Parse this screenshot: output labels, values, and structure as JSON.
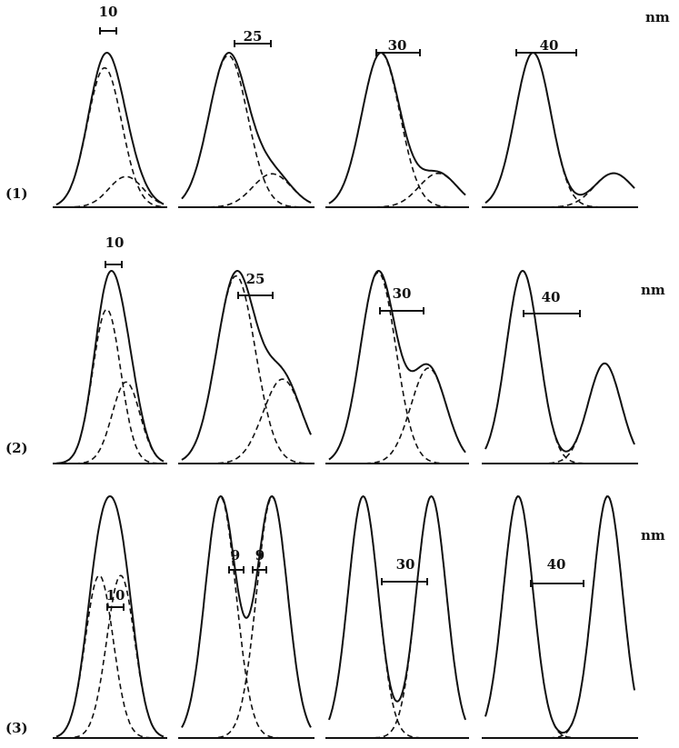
{
  "unit_label": "nm",
  "rows": [
    {
      "label": "(1)",
      "unit": "nm",
      "panels": [
        {
          "caption": "10",
          "peaks": [
            {
              "a": 1.0,
              "mu": 0.45,
              "s": 0.16
            },
            {
              "a": 0.22,
              "mu": 0.65,
              "s": 0.16
            }
          ]
        },
        {
          "caption": "25",
          "peaks": [
            {
              "a": 1.0,
              "mu": 0.36,
              "s": 0.15
            },
            {
              "a": 0.22,
              "mu": 0.7,
              "s": 0.15
            }
          ]
        },
        {
          "caption": "30",
          "peaks": [
            {
              "a": 1.0,
              "mu": 0.38,
              "s": 0.14
            },
            {
              "a": 0.22,
              "mu": 0.8,
              "s": 0.14
            }
          ]
        },
        {
          "caption": "40",
          "peaks": [
            {
              "a": 1.0,
              "mu": 0.32,
              "s": 0.12
            },
            {
              "a": 0.22,
              "mu": 0.86,
              "s": 0.13
            }
          ]
        }
      ]
    },
    {
      "label": "(2)",
      "unit": "nm",
      "panels": [
        {
          "caption": "10",
          "peaks": [
            {
              "a": 0.7,
              "mu": 0.47,
              "s": 0.13
            },
            {
              "a": 0.37,
              "mu": 0.65,
              "s": 0.13
            }
          ]
        },
        {
          "caption": "25",
          "peaks": [
            {
              "a": 1.0,
              "mu": 0.42,
              "s": 0.15
            },
            {
              "a": 0.45,
              "mu": 0.78,
              "s": 0.15
            }
          ]
        },
        {
          "caption": "30",
          "peaks": [
            {
              "a": 1.0,
              "mu": 0.36,
              "s": 0.13
            },
            {
              "a": 0.5,
              "mu": 0.73,
              "s": 0.13
            }
          ]
        },
        {
          "caption": "40",
          "peaks": [
            {
              "a": 1.0,
              "mu": 0.25,
              "s": 0.11
            },
            {
              "a": 0.52,
              "mu": 0.8,
              "s": 0.11
            }
          ]
        }
      ]
    },
    {
      "label": "(3)",
      "unit": "nm",
      "panels": [
        {
          "caption": "10",
          "peaks": [
            {
              "a": 0.5,
              "mu": 0.4,
              "s": 0.13
            },
            {
              "a": 0.5,
              "mu": 0.6,
              "s": 0.13
            }
          ]
        },
        {
          "caption_left": "9",
          "caption_right": "9",
          "peaks": [
            {
              "a": 0.9,
              "mu": 0.3,
              "s": 0.12
            },
            {
              "a": 0.9,
              "mu": 0.7,
              "s": 0.12
            }
          ]
        },
        {
          "caption": "30",
          "peaks": [
            {
              "a": 0.75,
              "mu": 0.25,
              "s": 0.11
            },
            {
              "a": 0.75,
              "mu": 0.75,
              "s": 0.11
            }
          ]
        },
        {
          "caption": "40",
          "peaks": [
            {
              "a": 0.78,
              "mu": 0.22,
              "s": 0.1
            },
            {
              "a": 0.78,
              "mu": 0.82,
              "s": 0.1
            }
          ]
        }
      ]
    }
  ]
}
